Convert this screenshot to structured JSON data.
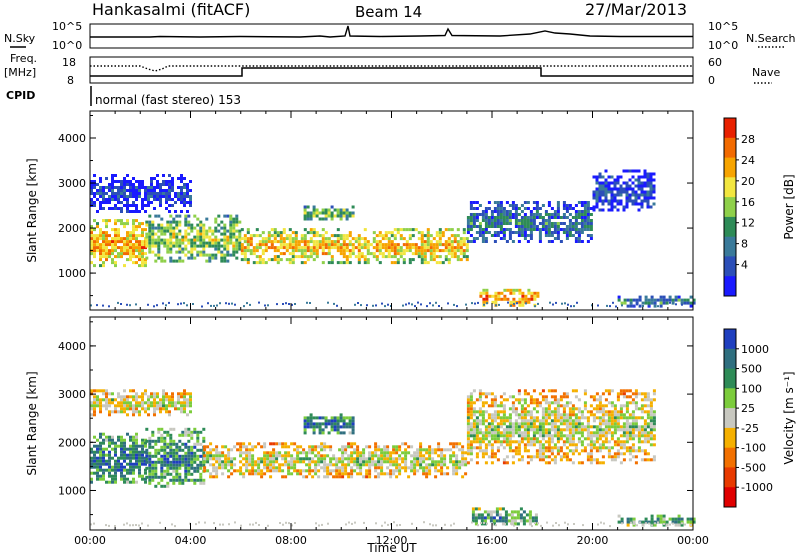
{
  "header": {
    "title": "Hankasalmi (fitACF)",
    "beam": "Beam 14",
    "date": "27/Mar/2013"
  },
  "top_panels": {
    "nsky_label": "N.Sky",
    "nsearch_label": "N.Search",
    "nsky_ticks": [
      "10^5",
      "10^0"
    ],
    "nsearch_ticks": [
      "10^5",
      "10^0"
    ],
    "freq_label_1": "Freq.",
    "freq_label_2": "[MHz]",
    "freq_ticks": [
      "18",
      "8"
    ],
    "nave_label": "Nave",
    "nave_ticks": [
      "60",
      "0"
    ],
    "cpid_label": "CPID",
    "cpid_text": "normal (fast stereo) 153"
  },
  "chart_data": [
    {
      "type": "heatmap",
      "name": "power",
      "ylabel": "Slant Range [km]",
      "yticks": [
        "4000",
        "3000",
        "2000",
        "1000"
      ],
      "ylim": [
        180,
        4600
      ],
      "xlim": [
        0,
        24
      ],
      "colorbar_label": "Power [dB]",
      "colorbar_ticks": [
        "28",
        "24",
        "20",
        "16",
        "12",
        "8",
        "4"
      ],
      "colorbar_colors": [
        "#1a1aff",
        "#2c4fb8",
        "#3a7a9a",
        "#2e8b57",
        "#8fd04a",
        "#f2e640",
        "#f7a400",
        "#f26a00",
        "#e82000"
      ],
      "bands": [
        {
          "t0": 0.0,
          "t1": 2.2,
          "r0": 1150,
          "r1": 2200,
          "level": 0.75
        },
        {
          "t0": 2.2,
          "t1": 6.0,
          "r0": 1250,
          "r1": 2300,
          "level": 0.55
        },
        {
          "t0": 6.0,
          "t1": 15.0,
          "r0": 1250,
          "r1": 2000,
          "level": 0.7
        },
        {
          "t0": 15.0,
          "t1": 20.0,
          "r0": 1700,
          "r1": 2600,
          "level": 0.3
        },
        {
          "t0": 20.0,
          "t1": 22.5,
          "r0": 2400,
          "r1": 3300,
          "level": 0.2
        },
        {
          "t0": 8.5,
          "t1": 10.5,
          "r0": 2200,
          "r1": 2500,
          "level": 0.5
        },
        {
          "t0": 15.5,
          "t1": 17.8,
          "r0": 300,
          "r1": 650,
          "level": 0.8
        },
        {
          "t0": 21.0,
          "t1": 24.0,
          "r0": 300,
          "r1": 500,
          "level": 0.35
        },
        {
          "t0": 0.0,
          "t1": 4.0,
          "r0": 2400,
          "r1": 3200,
          "level": 0.15
        }
      ]
    },
    {
      "type": "heatmap",
      "name": "velocity",
      "ylabel": "Slant Range [km]",
      "yticks": [
        "4000",
        "3000",
        "2000",
        "1000"
      ],
      "ylim": [
        180,
        4600
      ],
      "xlim": [
        0,
        24
      ],
      "xticks": [
        "00:00",
        "04:00",
        "08:00",
        "12:00",
        "16:00",
        "20:00",
        "00:00"
      ],
      "xlabel": "Time UT",
      "colorbar_label": "Velocity [m s⁻¹]",
      "colorbar_ticks": [
        "1000",
        "500",
        "100",
        "25",
        "-25",
        "-100",
        "-500",
        "-1000"
      ],
      "colorbar_colors": [
        "#1f3fbf",
        "#2f6f7f",
        "#2e8b57",
        "#7ccc3c",
        "#c8c8c0",
        "#f5b000",
        "#f27000",
        "#e83a00",
        "#e00000"
      ],
      "bands": [
        {
          "t0": 0.0,
          "t1": 2.2,
          "r0": 1150,
          "r1": 2200,
          "level": 0.85
        },
        {
          "t0": 2.2,
          "t1": 4.5,
          "r0": 1100,
          "r1": 2300,
          "level": 0.8
        },
        {
          "t0": 4.5,
          "t1": 15.0,
          "r0": 1300,
          "r1": 2000,
          "level": 0.55
        },
        {
          "t0": 15.0,
          "t1": 22.5,
          "r0": 1600,
          "r1": 3100,
          "level": 0.55
        },
        {
          "t0": 8.5,
          "t1": 10.5,
          "r0": 2200,
          "r1": 2600,
          "level": 0.85
        },
        {
          "t0": 15.2,
          "t1": 17.8,
          "r0": 300,
          "r1": 650,
          "level": 0.75
        },
        {
          "t0": 21.0,
          "t1": 24.0,
          "r0": 300,
          "r1": 500,
          "level": 0.75
        },
        {
          "t0": 0.0,
          "t1": 4.0,
          "r0": 2600,
          "r1": 3100,
          "level": 0.55
        }
      ]
    }
  ]
}
